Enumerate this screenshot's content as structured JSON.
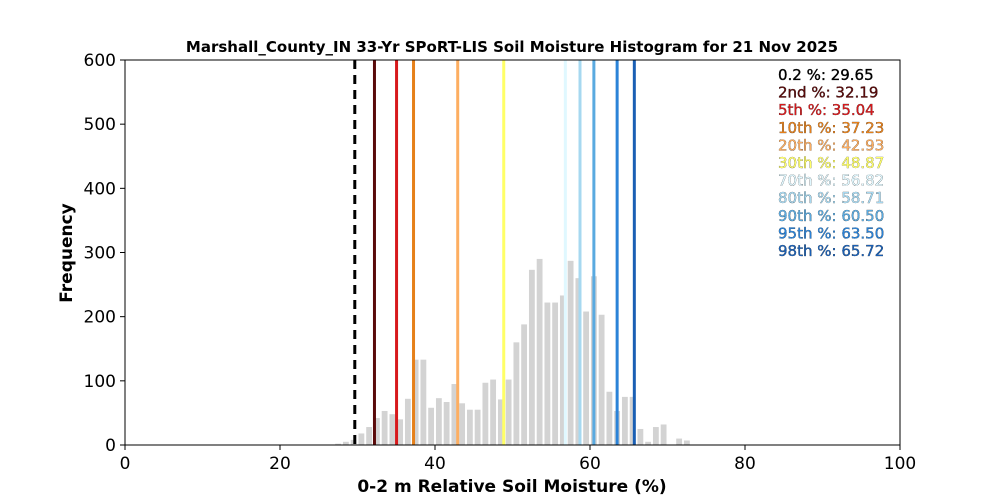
{
  "chart_data": {
    "type": "bar",
    "title": "Marshall_County_IN 33-Yr SPoRT-LIS Soil Moisture Histogram for 21 Nov 2025",
    "xlabel": "0-2 m Relative Soil Moisture (%)",
    "ylabel": "Frequency",
    "xlim": [
      0,
      100
    ],
    "ylim": [
      0,
      600
    ],
    "xticks": [
      "0",
      "20",
      "40",
      "60",
      "80",
      "100"
    ],
    "yticks": [
      "0",
      "100",
      "200",
      "300",
      "400",
      "500",
      "600"
    ],
    "grid": false,
    "bar_color": "#d3d3d3",
    "bin_width": 1,
    "bins": [
      {
        "x": 27,
        "count": 2
      },
      {
        "x": 28,
        "count": 5
      },
      {
        "x": 29,
        "count": 8
      },
      {
        "x": 30,
        "count": 18
      },
      {
        "x": 31,
        "count": 28
      },
      {
        "x": 32,
        "count": 42
      },
      {
        "x": 33,
        "count": 53
      },
      {
        "x": 34,
        "count": 48
      },
      {
        "x": 35,
        "count": 40
      },
      {
        "x": 36,
        "count": 72
      },
      {
        "x": 37,
        "count": 133
      },
      {
        "x": 38,
        "count": 133
      },
      {
        "x": 39,
        "count": 58
      },
      {
        "x": 40,
        "count": 73
      },
      {
        "x": 41,
        "count": 67
      },
      {
        "x": 42,
        "count": 95
      },
      {
        "x": 43,
        "count": 65
      },
      {
        "x": 44,
        "count": 55
      },
      {
        "x": 45,
        "count": 55
      },
      {
        "x": 46,
        "count": 97
      },
      {
        "x": 47,
        "count": 102
      },
      {
        "x": 48,
        "count": 71
      },
      {
        "x": 49,
        "count": 102
      },
      {
        "x": 50,
        "count": 160
      },
      {
        "x": 51,
        "count": 188
      },
      {
        "x": 52,
        "count": 273
      },
      {
        "x": 53,
        "count": 290
      },
      {
        "x": 54,
        "count": 222
      },
      {
        "x": 55,
        "count": 222
      },
      {
        "x": 56,
        "count": 233
      },
      {
        "x": 57,
        "count": 287
      },
      {
        "x": 58,
        "count": 260
      },
      {
        "x": 59,
        "count": 208
      },
      {
        "x": 60,
        "count": 263
      },
      {
        "x": 61,
        "count": 203
      },
      {
        "x": 62,
        "count": 83
      },
      {
        "x": 63,
        "count": 53
      },
      {
        "x": 64,
        "count": 75
      },
      {
        "x": 65,
        "count": 75
      },
      {
        "x": 66,
        "count": 25
      },
      {
        "x": 67,
        "count": 5
      },
      {
        "x": 68,
        "count": 28
      },
      {
        "x": 69,
        "count": 32
      },
      {
        "x": 70,
        "count": 0
      },
      {
        "x": 71,
        "count": 10
      },
      {
        "x": 72,
        "count": 7
      }
    ],
    "percentiles": [
      {
        "label": "0.2 %: 29.65",
        "value": 29.65,
        "color": "#000000",
        "dashed": true
      },
      {
        "label": "2nd %: 32.19",
        "value": 32.19,
        "color": "#5a0a0a",
        "dashed": false
      },
      {
        "label": "5th %: 35.04",
        "value": 35.04,
        "color": "#d7191c",
        "dashed": false
      },
      {
        "label": "10th %: 37.23",
        "value": 37.23,
        "color": "#e6801a",
        "dashed": false
      },
      {
        "label": "20th %: 42.93",
        "value": 42.93,
        "color": "#fdae61",
        "dashed": false
      },
      {
        "label": "30th %: 48.87",
        "value": 48.87,
        "color": "#ffff66",
        "dashed": false
      },
      {
        "label": "70th %: 56.82",
        "value": 56.82,
        "color": "#e0f8ff",
        "dashed": false
      },
      {
        "label": "80th %: 58.71",
        "value": 58.71,
        "color": "#a6d8f0",
        "dashed": false
      },
      {
        "label": "90th %: 60.50",
        "value": 60.5,
        "color": "#5aaae0",
        "dashed": false
      },
      {
        "label": "95th %: 63.50",
        "value": 63.5,
        "color": "#2b83d8",
        "dashed": false
      },
      {
        "label": "98th %: 65.72",
        "value": 65.72,
        "color": "#1a5fb4",
        "dashed": false
      }
    ],
    "legend_placement": "top-right"
  }
}
